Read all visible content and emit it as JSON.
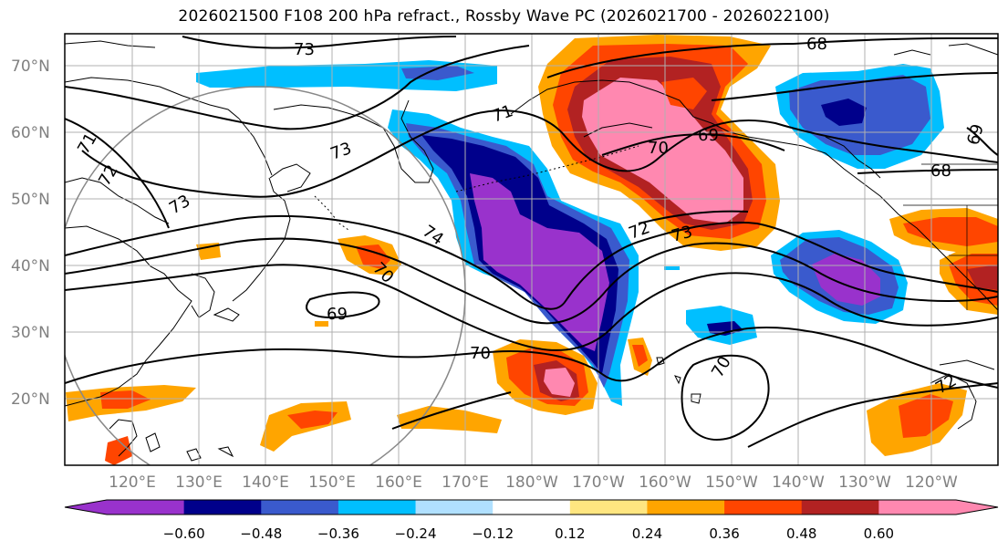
{
  "title": "2026021500 F108 200 hPa refract., Rossby Wave PC (2026021700 - 2026022100)",
  "lat_labels": [
    "70°N",
    "60°N",
    "50°N",
    "40°N",
    "30°N",
    "20°N"
  ],
  "lon_labels": [
    "120°E",
    "130°E",
    "140°E",
    "150°E",
    "160°E",
    "170°E",
    "180°W",
    "170°W",
    "160°W",
    "150°W",
    "140°W",
    "130°W",
    "120°W"
  ],
  "colorbar": {
    "colors": [
      "#9932cc",
      "#00008b",
      "#3a5acd",
      "#00bfff",
      "#b0e0ff",
      "#ffffff",
      "#ffe680",
      "#ffa500",
      "#ff4500",
      "#b22222",
      "#ff88b0"
    ],
    "tick_labels": [
      "−0.60",
      "−0.48",
      "−0.36",
      "−0.24",
      "−0.12",
      "0.12",
      "0.24",
      "0.36",
      "0.48",
      "0.60"
    ]
  },
  "contour_labels": [
    "73",
    "68",
    "71",
    "70",
    "69",
    "71",
    "72",
    "73",
    "74",
    "70",
    "69",
    "70",
    "72",
    "73",
    "70",
    "69",
    "68",
    "72"
  ],
  "colors": {
    "purple": "#9932cc",
    "navy": "#00008b",
    "blue": "#3a5acd",
    "sky": "#00bfff",
    "light": "#b0e0ff",
    "yellow": "#ffe680",
    "orange": "#ffa500",
    "redorange": "#ff4500",
    "darkred": "#b22222",
    "pink": "#ff88b0"
  }
}
